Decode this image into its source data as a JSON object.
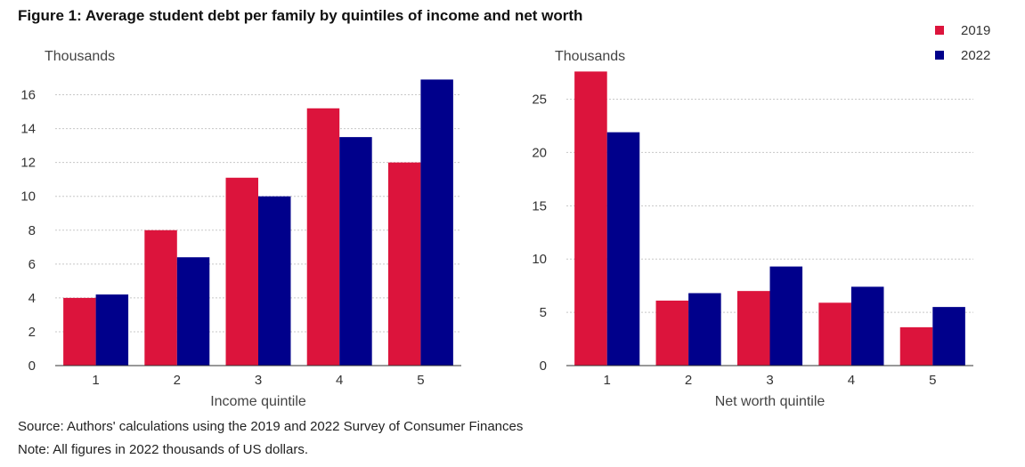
{
  "title": "Figure 1: Average student debt per family by quintiles of income and net worth",
  "legend": [
    {
      "label": "2019",
      "color": "#dc143c"
    },
    {
      "label": "2022",
      "color": "#00008b"
    }
  ],
  "chart_data": [
    {
      "type": "bar",
      "title": "",
      "unit_label": "Thousands",
      "xlabel": "Income quintile",
      "ylabel": "Thousands",
      "categories": [
        "1",
        "2",
        "3",
        "4",
        "5"
      ],
      "series": [
        {
          "name": "2019",
          "color": "#dc143c",
          "values": [
            4.0,
            8.0,
            11.1,
            15.2,
            12.0
          ]
        },
        {
          "name": "2022",
          "color": "#00008b",
          "values": [
            4.2,
            6.4,
            10.0,
            13.5,
            16.9
          ]
        }
      ],
      "ylim": [
        0,
        17.5
      ],
      "yticks": [
        0,
        2,
        4,
        6,
        8,
        10,
        12,
        14,
        16
      ],
      "grid": true
    },
    {
      "type": "bar",
      "title": "",
      "unit_label": "Thousands",
      "xlabel": "Net worth quintile",
      "ylabel": "Thousands",
      "categories": [
        "1",
        "2",
        "3",
        "4",
        "5"
      ],
      "series": [
        {
          "name": "2019",
          "color": "#dc143c",
          "values": [
            27.6,
            6.1,
            7.0,
            5.9,
            3.6
          ]
        },
        {
          "name": "2022",
          "color": "#00008b",
          "values": [
            21.9,
            6.8,
            9.3,
            7.4,
            5.5
          ]
        }
      ],
      "ylim": [
        0,
        27.8
      ],
      "yticks": [
        0,
        5,
        10,
        15,
        20,
        25
      ],
      "grid": true
    }
  ],
  "footnotes": {
    "source": "Source: Authors' calculations using the 2019 and 2022 Survey of Consumer Finances",
    "note": "Note: All figures in 2022 thousands of US dollars."
  }
}
